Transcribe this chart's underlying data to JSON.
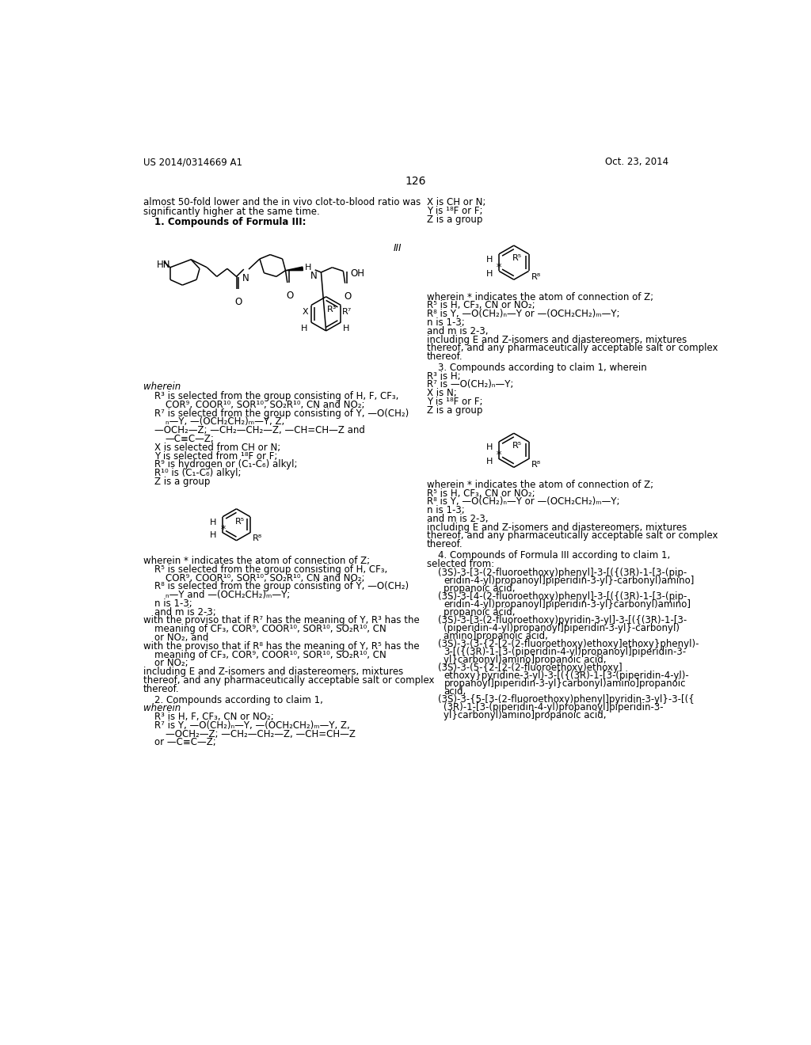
{
  "header_left": "US 2014/0314669 A1",
  "header_right": "Oct. 23, 2014",
  "page_number": "126",
  "background_color": "#ffffff"
}
